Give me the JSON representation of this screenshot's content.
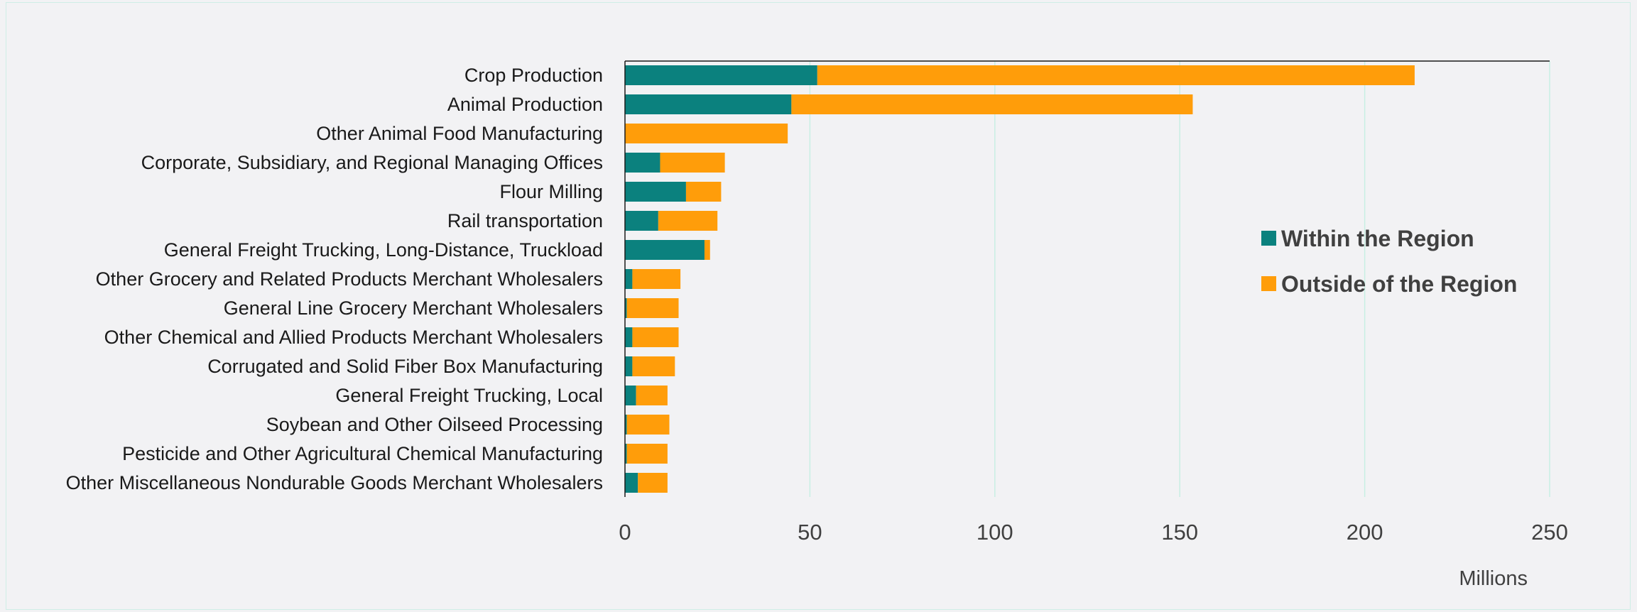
{
  "chart_data": {
    "type": "bar",
    "orientation": "horizontal",
    "stacked": true,
    "title": "",
    "xlabel": "",
    "ylabel": "",
    "x_unit_label": "Millions",
    "xlim": [
      0,
      250
    ],
    "x_ticks": [
      0,
      50,
      100,
      150,
      200,
      250
    ],
    "grid": true,
    "legend_position": "right",
    "categories": [
      "Crop Production",
      "Animal Production",
      "Other Animal Food Manufacturing",
      "Corporate, Subsidiary, and Regional Managing Offices",
      "Flour Milling",
      "Rail transportation",
      "General Freight Trucking, Long-Distance, Truckload",
      "Other Grocery and Related Products Merchant Wholesalers",
      "General Line Grocery Merchant Wholesalers",
      "Other Chemical and Allied Products Merchant Wholesalers",
      "Corrugated and Solid Fiber Box Manufacturing",
      "General Freight Trucking, Local",
      "Soybean and Other Oilseed Processing",
      "Pesticide and Other Agricultural Chemical Manufacturing",
      "Other Miscellaneous Nondurable Goods Merchant Wholesalers"
    ],
    "series": [
      {
        "name": "Within the Region",
        "color": "#0b817e",
        "values": [
          52,
          45,
          0,
          9.5,
          16.5,
          9,
          21.5,
          2,
          0.5,
          2,
          2,
          3,
          0.5,
          0.5,
          3.5
        ]
      },
      {
        "name": "Outside of the Region",
        "color": "#ff9d0a",
        "values": [
          161.5,
          108.5,
          44,
          17.5,
          9.5,
          16,
          1.5,
          13,
          14,
          12.5,
          11.5,
          8.5,
          11.5,
          11,
          8
        ]
      }
    ]
  }
}
